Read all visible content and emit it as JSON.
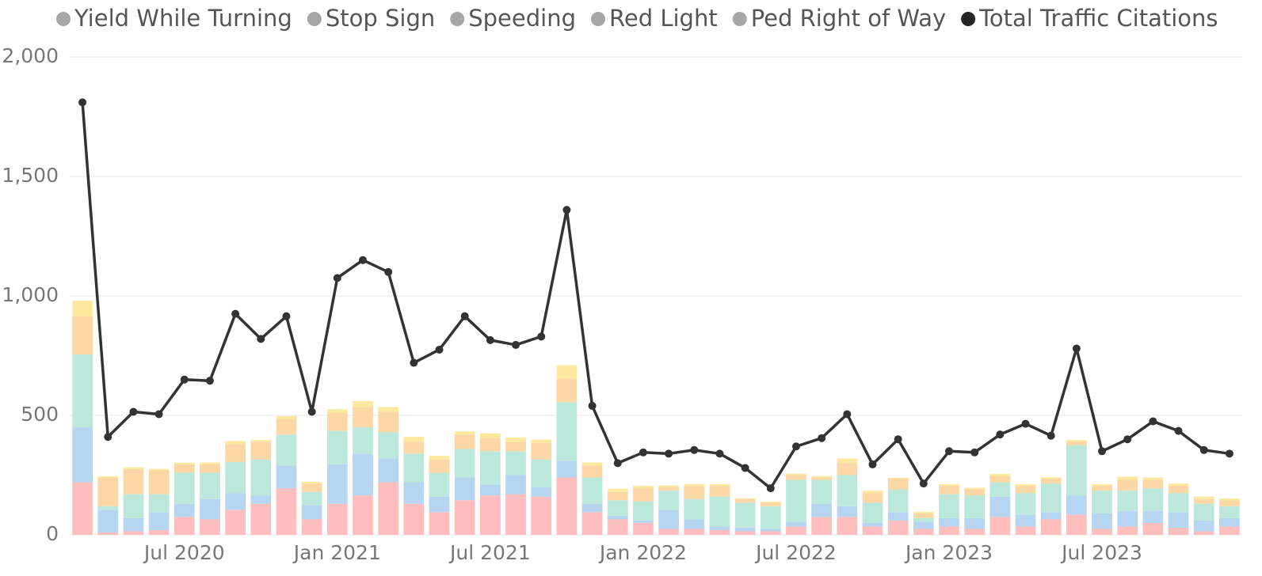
{
  "chart_data": {
    "type": "bar",
    "stacked": true,
    "categories": [
      null,
      null,
      null,
      null,
      "Jul 2020",
      null,
      null,
      null,
      null,
      null,
      "Jan 2021",
      null,
      null,
      null,
      null,
      null,
      "Jul 2021",
      null,
      null,
      null,
      null,
      null,
      "Jan 2022",
      null,
      null,
      null,
      null,
      null,
      "Jul 2022",
      null,
      null,
      null,
      null,
      null,
      "Jan 2023",
      null,
      null,
      null,
      null,
      null,
      "Jul 2023",
      null,
      null,
      null,
      null,
      null
    ],
    "series": [
      {
        "name": "Yield While Turning",
        "type": "bar",
        "color": "#ffbdbd",
        "legend_color": "#a6a6a6",
        "values": [
          220,
          10,
          15,
          20,
          75,
          65,
          105,
          130,
          195,
          65,
          130,
          165,
          220,
          130,
          95,
          145,
          165,
          170,
          160,
          240,
          95,
          65,
          50,
          25,
          25,
          20,
          15,
          15,
          35,
          75,
          75,
          35,
          60,
          25,
          35,
          25,
          75,
          35,
          65,
          85,
          25,
          35,
          50,
          30,
          15,
          35
        ]
      },
      {
        "name": "Stop Sign",
        "type": "bar",
        "color": "#b5d5f0",
        "legend_color": "#a6a6a6",
        "values": [
          230,
          95,
          55,
          75,
          55,
          85,
          70,
          35,
          95,
          60,
          165,
          175,
          100,
          90,
          65,
          95,
          45,
          80,
          40,
          70,
          35,
          15,
          10,
          80,
          40,
          15,
          15,
          10,
          20,
          55,
          45,
          15,
          35,
          30,
          35,
          45,
          85,
          50,
          30,
          80,
          65,
          65,
          50,
          65,
          45,
          35
        ]
      },
      {
        "name": "Speeding",
        "type": "bar",
        "color": "#bce8dc",
        "legend_color": "#a6a6a6",
        "values": [
          305,
          15,
          100,
          75,
          130,
          110,
          130,
          150,
          130,
          55,
          140,
          110,
          110,
          120,
          100,
          120,
          140,
          100,
          115,
          245,
          110,
          65,
          80,
          80,
          85,
          125,
          105,
          95,
          175,
          100,
          130,
          85,
          95,
          15,
          100,
          95,
          60,
          90,
          120,
          210,
          95,
          85,
          95,
          80,
          70,
          50
        ]
      },
      {
        "name": "Red Light",
        "type": "bar",
        "color": "#fad7a4",
        "legend_color": "#a6a6a6",
        "values": [
          160,
          120,
          105,
          100,
          35,
          35,
          75,
          75,
          65,
          35,
          75,
          85,
          85,
          50,
          55,
          60,
          55,
          40,
          70,
          100,
          50,
          35,
          55,
          15,
          55,
          45,
          15,
          15,
          20,
          10,
          50,
          40,
          45,
          20,
          35,
          25,
          25,
          30,
          20,
          15,
          20,
          45,
          35,
          30,
          20,
          25
        ]
      },
      {
        "name": "Ped Right of Way",
        "type": "bar",
        "color": "#fce99d",
        "legend_color": "#a6a6a6",
        "values": [
          65,
          5,
          8,
          6,
          7,
          8,
          13,
          7,
          12,
          7,
          16,
          25,
          20,
          20,
          16,
          13,
          20,
          17,
          14,
          55,
          13,
          13,
          10,
          7,
          8,
          7,
          3,
          4,
          6,
          6,
          20,
          10,
          4,
          6,
          7,
          7,
          10,
          7,
          6,
          7,
          7,
          14,
          10,
          10,
          10,
          7
        ]
      },
      {
        "name": "Total Traffic Citations",
        "type": "line",
        "color": "#333333",
        "legend_color": "#252525",
        "values": [
          1810,
          410,
          515,
          505,
          650,
          645,
          925,
          820,
          915,
          515,
          1075,
          1150,
          1100,
          720,
          775,
          915,
          815,
          795,
          830,
          1360,
          540,
          300,
          345,
          340,
          355,
          340,
          280,
          195,
          370,
          405,
          505,
          295,
          400,
          215,
          350,
          345,
          420,
          465,
          415,
          780,
          350,
          400,
          475,
          435,
          355,
          340
        ]
      }
    ],
    "ylim": [
      0,
      2000
    ],
    "yticks": [
      0,
      {
        "value": 500,
        "label": "500"
      },
      {
        "value": 1000,
        "label": "1,000"
      },
      {
        "value": 1500,
        "label": "1,500"
      },
      {
        "value": 2000,
        "label": "2,000"
      }
    ],
    "grid": true,
    "legend": "top"
  }
}
